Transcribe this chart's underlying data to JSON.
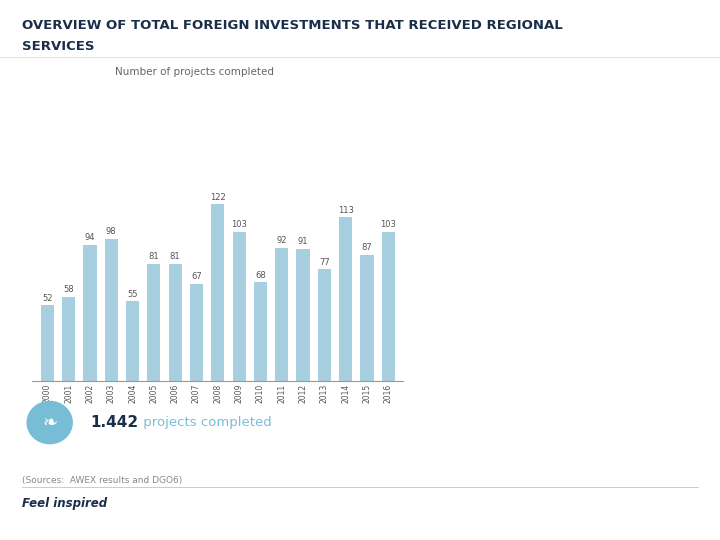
{
  "title_line1": "OVERVIEW OF TOTAL FOREIGN INVESTMENTS THAT RECEIVED REGIONAL",
  "title_line2": "SERVICES",
  "subtitle": "Number of projects completed",
  "years": [
    "2000",
    "2001",
    "2002",
    "2003",
    "2004",
    "2005",
    "2006",
    "2007",
    "2008",
    "2009",
    "2010",
    "2011",
    "2012",
    "2013",
    "2014",
    "2015",
    "2016"
  ],
  "values": [
    52,
    58,
    94,
    98,
    55,
    81,
    81,
    67,
    122,
    103,
    68,
    92,
    91,
    77,
    113,
    87,
    103
  ],
  "bar_color": "#a8cfe0",
  "title_color": "#1a2e4a",
  "subtitle_color": "#666666",
  "bar_label_color": "#555555",
  "background_color": "#ffffff",
  "total_text": "1.442",
  "total_label": " projects completed",
  "source_text": "(Sources:  AWEX results and DGO6)",
  "ylim": [
    0,
    140
  ],
  "title_fontsize": 9.5,
  "subtitle_fontsize": 7.5,
  "bar_label_fontsize": 6.0,
  "total_bold_fontsize": 11,
  "total_regular_fontsize": 9.5,
  "source_fontsize": 6.5,
  "footer_fontsize": 8.5,
  "icon_color": "#78bdd6",
  "total_bold_color": "#1a2e4a",
  "total_regular_color": "#78bdd6",
  "source_color": "#888888",
  "line_color": "#cccccc",
  "footer_color": "#1a2e4a",
  "xtick_color": "#555555",
  "xtick_fontsize": 5.5,
  "spine_color": "#999999"
}
